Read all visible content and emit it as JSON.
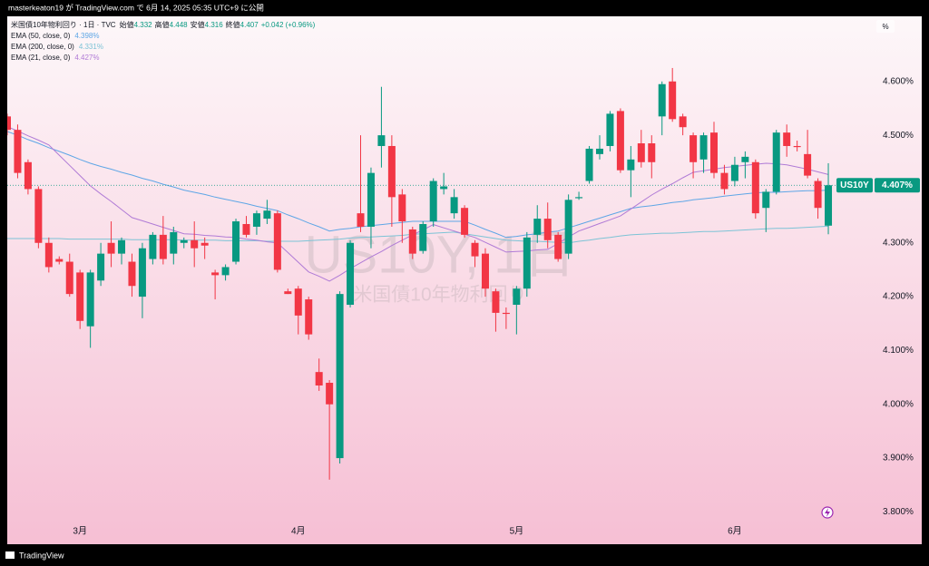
{
  "header": "masterkeaton19 が TradingView.com で 6月 14, 2025 05:35 UTC+9 に公開",
  "footer": "TradingView",
  "chart_data": {
    "type": "candlestick",
    "title": "米国債10年物利回り · 1日 · TVC",
    "ohlc_names": [
      "始値",
      "高値",
      "安値",
      "終値"
    ],
    "change": "+0.042 (+0.96%)",
    "watermark": "US10Y, 1日",
    "watermark_subtitle": "米国債10年物利回り",
    "symbol": "US10Y",
    "last_label": "4.407%",
    "unit_button": "%",
    "up_color": "#089981",
    "down_color": "#f23645",
    "categories": [
      null,
      null,
      null,
      null,
      null,
      null,
      null,
      "3月",
      null,
      null,
      null,
      null,
      null,
      null,
      null,
      null,
      null,
      null,
      null,
      null,
      null,
      null,
      null,
      null,
      null,
      null,
      null,
      null,
      "4月",
      null,
      null,
      null,
      null,
      null,
      null,
      null,
      null,
      null,
      null,
      null,
      null,
      null,
      null,
      null,
      null,
      null,
      null,
      null,
      null,
      "5月",
      null,
      null,
      null,
      null,
      null,
      null,
      null,
      null,
      null,
      null,
      null,
      null,
      null,
      null,
      null,
      null,
      null,
      null,
      null,
      null,
      "6月",
      null,
      null,
      null,
      null,
      null,
      null,
      null,
      null,
      null
    ],
    "open": [
      4.535,
      4.51,
      4.45,
      4.4,
      4.3,
      4.27,
      4.265,
      4.245,
      4.145,
      4.23,
      4.3,
      4.28,
      4.265,
      4.2,
      4.27,
      4.315,
      4.28,
      4.3,
      4.305,
      4.3,
      4.245,
      4.24,
      4.265,
      4.335,
      4.33,
      4.345,
      4.355,
      4.21,
      4.215,
      4.195,
      4.06,
      4.04,
      3.9,
      4.185,
      4.355,
      4.33,
      4.48,
      4.48,
      4.39,
      4.325,
      4.285,
      4.34,
      4.4,
      4.355,
      4.365,
      4.3,
      4.28,
      4.21,
      4.17,
      4.185,
      4.215,
      4.315,
      4.345,
      4.315,
      4.28,
      4.383,
      4.415,
      4.465,
      4.48,
      4.545,
      4.435,
      4.485,
      4.485,
      4.535,
      4.6,
      4.535,
      4.5,
      4.455,
      4.505,
      4.43,
      4.415,
      4.45,
      4.45,
      4.365,
      4.395,
      4.505,
      4.48,
      4.465,
      4.415,
      4.332
    ],
    "high": [
      4.54,
      4.52,
      4.455,
      4.405,
      4.31,
      4.275,
      4.28,
      4.25,
      4.25,
      4.3,
      4.34,
      4.31,
      4.28,
      4.3,
      4.32,
      4.35,
      4.33,
      4.31,
      4.34,
      4.31,
      4.25,
      4.26,
      4.345,
      4.35,
      4.36,
      4.38,
      4.36,
      4.215,
      4.22,
      4.2,
      4.085,
      4.045,
      4.21,
      4.305,
      4.5,
      4.44,
      4.59,
      4.5,
      4.4,
      4.33,
      4.34,
      4.42,
      4.43,
      4.4,
      4.37,
      4.305,
      4.29,
      4.215,
      4.18,
      4.22,
      4.32,
      4.37,
      4.375,
      4.32,
      4.39,
      4.395,
      4.48,
      4.5,
      4.545,
      4.55,
      4.48,
      4.51,
      4.5,
      4.6,
      4.625,
      4.54,
      4.505,
      4.505,
      4.525,
      4.445,
      4.46,
      4.47,
      4.455,
      4.4,
      4.51,
      4.52,
      4.49,
      4.51,
      4.42,
      4.448
    ],
    "low": [
      4.5,
      4.42,
      4.39,
      4.29,
      4.245,
      4.26,
      4.2,
      4.14,
      4.105,
      4.22,
      4.255,
      4.26,
      4.2,
      4.16,
      4.26,
      4.26,
      4.26,
      4.29,
      4.255,
      4.27,
      4.195,
      4.23,
      4.26,
      4.31,
      4.315,
      4.335,
      4.245,
      4.205,
      4.13,
      4.12,
      4.025,
      3.86,
      3.89,
      4.18,
      4.32,
      4.29,
      4.44,
      4.33,
      4.3,
      4.27,
      4.28,
      4.33,
      4.39,
      4.345,
      4.31,
      4.255,
      4.2,
      4.135,
      4.14,
      4.13,
      4.2,
      4.3,
      4.29,
      4.265,
      4.27,
      4.38,
      4.41,
      4.455,
      4.47,
      4.43,
      4.385,
      4.44,
      4.42,
      4.5,
      4.525,
      4.5,
      4.42,
      4.43,
      4.42,
      4.39,
      4.405,
      4.42,
      4.345,
      4.32,
      4.39,
      4.46,
      4.47,
      4.42,
      4.345,
      4.316
    ],
    "close": [
      4.51,
      4.43,
      4.4,
      4.3,
      4.255,
      4.265,
      4.205,
      4.155,
      4.245,
      4.28,
      4.28,
      4.305,
      4.22,
      4.29,
      4.315,
      4.27,
      4.32,
      4.305,
      4.29,
      4.295,
      4.24,
      4.255,
      4.34,
      4.315,
      4.355,
      4.36,
      4.25,
      4.205,
      4.165,
      4.13,
      4.035,
      4.0,
      4.205,
      4.3,
      4.33,
      4.43,
      4.5,
      4.385,
      4.34,
      4.28,
      4.335,
      4.415,
      4.405,
      4.385,
      4.315,
      4.275,
      4.215,
      4.17,
      4.168,
      4.215,
      4.31,
      4.345,
      4.305,
      4.27,
      4.38,
      4.385,
      4.475,
      4.475,
      4.54,
      4.435,
      4.455,
      4.45,
      4.45,
      4.595,
      4.53,
      4.515,
      4.45,
      4.5,
      4.43,
      4.4,
      4.445,
      4.46,
      4.355,
      4.395,
      4.505,
      4.48,
      4.478,
      4.425,
      4.365,
      4.407
    ],
    "series": [
      {
        "name": "EMA (50, close, 0)",
        "color": "#5ea6e6",
        "value_label": "4.398%",
        "values": [
          4.507,
          4.5,
          4.492,
          4.485,
          4.477,
          4.47,
          4.463,
          4.455,
          4.448,
          4.442,
          4.437,
          4.431,
          4.426,
          4.42,
          4.415,
          4.409,
          4.404,
          4.398,
          4.394,
          4.39,
          4.385,
          4.381,
          4.377,
          4.373,
          4.368,
          4.364,
          4.36,
          4.352,
          4.345,
          4.337,
          4.33,
          4.322,
          4.325,
          4.327,
          4.33,
          4.332,
          4.334,
          4.336,
          4.338,
          4.34,
          4.34,
          4.34,
          4.34,
          4.34,
          4.34,
          4.333,
          4.325,
          4.318,
          4.31,
          4.312,
          4.315,
          4.317,
          4.32,
          4.322,
          4.328,
          4.334,
          4.34,
          4.346,
          4.352,
          4.358,
          4.364,
          4.367,
          4.369,
          4.372,
          4.375,
          4.377,
          4.38,
          4.382,
          4.384,
          4.387,
          4.389,
          4.391,
          4.393,
          4.394,
          4.394,
          4.395,
          4.396,
          4.397,
          4.397,
          4.398
        ]
      },
      {
        "name": "EMA (200, close, 0)",
        "color": "#7cc3d6",
        "value_label": "4.331%",
        "values": [
          4.308,
          4.308,
          4.308,
          4.308,
          4.308,
          4.308,
          4.307,
          4.307,
          4.307,
          4.307,
          4.307,
          4.307,
          4.306,
          4.306,
          4.306,
          4.306,
          4.306,
          4.305,
          4.305,
          4.305,
          4.305,
          4.304,
          4.304,
          4.304,
          4.304,
          4.303,
          4.303,
          4.303,
          4.303,
          4.304,
          4.305,
          4.306,
          4.307,
          4.309,
          4.31,
          4.311,
          4.312,
          4.313,
          4.314,
          4.316,
          4.317,
          4.318,
          4.319,
          4.32,
          4.317,
          4.314,
          4.311,
          4.308,
          4.305,
          4.304,
          4.303,
          4.303,
          4.302,
          4.301,
          4.3,
          4.303,
          4.305,
          4.308,
          4.31,
          4.313,
          4.315,
          4.316,
          4.317,
          4.318,
          4.318,
          4.319,
          4.32,
          4.321,
          4.321,
          4.322,
          4.323,
          4.324,
          4.325,
          4.326,
          4.327,
          4.327,
          4.328,
          4.329,
          4.33,
          4.331
        ]
      },
      {
        "name": "EMA (21, close, 0)",
        "color": "#b07bd6",
        "value_label": "4.427%",
        "values": [
          4.516,
          4.508,
          4.499,
          4.491,
          4.482,
          4.463,
          4.444,
          4.425,
          4.406,
          4.391,
          4.377,
          4.362,
          4.347,
          4.341,
          4.335,
          4.329,
          4.323,
          4.317,
          4.316,
          4.314,
          4.313,
          4.311,
          4.31,
          4.307,
          4.305,
          4.302,
          4.3,
          4.282,
          4.264,
          4.246,
          4.238,
          4.229,
          4.24,
          4.252,
          4.263,
          4.274,
          4.284,
          4.295,
          4.305,
          4.315,
          4.324,
          4.334,
          4.328,
          4.322,
          4.316,
          4.31,
          4.301,
          4.292,
          4.283,
          4.284,
          4.285,
          4.287,
          4.288,
          4.299,
          4.311,
          4.322,
          4.329,
          4.336,
          4.343,
          4.35,
          4.363,
          4.376,
          4.389,
          4.4,
          4.41,
          4.421,
          4.431,
          4.434,
          4.437,
          4.44,
          4.442,
          4.444,
          4.446,
          4.448,
          4.447,
          4.445,
          4.441,
          4.437,
          4.432,
          4.427
        ]
      }
    ],
    "ylim": [
      3.74,
      4.721
    ],
    "yticks": [
      {
        "value": 3.8,
        "label": "3.800%"
      },
      {
        "value": 3.9,
        "label": "3.900%"
      },
      {
        "value": 4.0,
        "label": "4.000%"
      },
      {
        "value": 4.1,
        "label": "4.100%"
      },
      {
        "value": 4.2,
        "label": "4.200%"
      },
      {
        "value": 4.3,
        "label": "4.300%"
      },
      {
        "value": 4.4,
        "label": "4.400%"
      },
      {
        "value": 4.5,
        "label": "4.500%"
      },
      {
        "value": 4.6,
        "label": "4.600%"
      }
    ],
    "grid": false
  }
}
